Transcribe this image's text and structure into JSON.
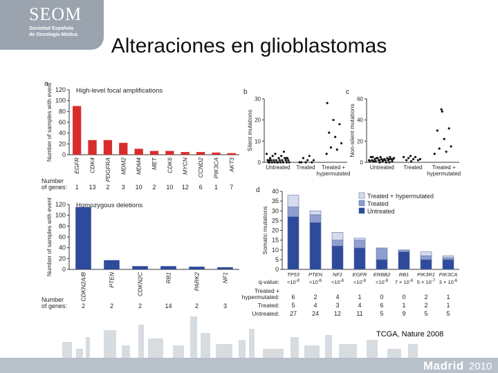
{
  "slide": {
    "title": "Alteraciones en glioblastomas",
    "logo": {
      "name": "SEOM",
      "line1": "Sociedad Española",
      "line2": "de Oncología Médica"
    },
    "caption": "TCGA, Nature 2008",
    "footer": {
      "brand": "Madrid",
      "year": "2010"
    },
    "colors": {
      "red": "#d92d2d",
      "blue": "#2e4a9a",
      "midblue": "#8e9fcf",
      "lightblue": "#d4dcee",
      "logo_bg": "#9aa3ae"
    }
  },
  "chart_data": [
    {
      "type": "bar",
      "panel": "a",
      "title": "High-level focal amplifications",
      "ylabel": "Number of samples with event",
      "ylim": [
        0,
        120
      ],
      "yticks": [
        0,
        20,
        40,
        60,
        80,
        100,
        120
      ],
      "categories": [
        "EGFR",
        "CDK4",
        "PDGFRA",
        "MDM2",
        "MDM4",
        "MET",
        "CDK6",
        "MYCN",
        "CCND2",
        "PIK3CA",
        "AKT3"
      ],
      "values": [
        90,
        27,
        27,
        22,
        11,
        7,
        7,
        5,
        5,
        4,
        3
      ],
      "genes_label": "Number\nof genes:",
      "genes": [
        "1",
        "13",
        "2",
        "3",
        "10",
        "2",
        "10",
        "12",
        "6",
        "1",
        "7"
      ],
      "color": "#d92d2d"
    },
    {
      "type": "bar",
      "panel": "a",
      "title": "Homozygous deletions",
      "ylabel": "Number of samples with event",
      "ylim": [
        0,
        120
      ],
      "yticks": [
        0,
        20,
        40,
        60,
        80,
        100,
        120
      ],
      "categories": [
        "CDKN2A/B",
        "PTEN",
        "CDKN2C",
        "RB1",
        "PARK2",
        "NF1"
      ],
      "values": [
        115,
        17,
        6,
        6,
        5,
        4
      ],
      "genes_label": "Number\nof genes:",
      "genes": [
        "2",
        "2",
        "2",
        "14",
        "2",
        "3"
      ],
      "color": "#2e4a9a"
    },
    {
      "type": "scatter",
      "panel": "b",
      "ylabel": "Silent mutations",
      "ylim": [
        0,
        30
      ],
      "yticks": [
        0,
        10,
        20,
        30
      ],
      "groups": [
        "Untreated",
        "Treated",
        "Treated +\nhypermutated"
      ],
      "points": [
        {
          "group": 0,
          "y": [
            0,
            0,
            0,
            0,
            0,
            0,
            0,
            0,
            0,
            0,
            1,
            1,
            1,
            1,
            1,
            1,
            1,
            1,
            2,
            2,
            2,
            2,
            3,
            3,
            4,
            4,
            5,
            1,
            0,
            2
          ]
        },
        {
          "group": 1,
          "y": [
            0,
            0,
            0,
            0,
            1,
            1,
            2,
            3
          ]
        },
        {
          "group": 2,
          "y": [
            28,
            20,
            18,
            14,
            12,
            9,
            7,
            6,
            4
          ]
        }
      ]
    },
    {
      "type": "scatter",
      "panel": "c",
      "ylabel": "Non-silent mutations",
      "ylim": [
        0,
        60
      ],
      "yticks": [
        0,
        20,
        40,
        60
      ],
      "groups": [
        "Untreated",
        "Treated",
        "Treated +\nhypermutated"
      ],
      "points": [
        {
          "group": 0,
          "y": [
            0,
            0,
            1,
            1,
            1,
            1,
            2,
            2,
            2,
            2,
            2,
            3,
            3,
            3,
            3,
            4,
            4,
            4,
            5,
            5,
            5,
            1,
            2,
            3,
            4,
            0,
            1,
            2,
            3,
            5
          ]
        },
        {
          "group": 1,
          "y": [
            1,
            2,
            2,
            3,
            3,
            4,
            5,
            5,
            6
          ]
        },
        {
          "group": 2,
          "y": [
            48,
            32,
            30,
            22,
            15,
            13,
            10,
            8,
            50
          ]
        }
      ]
    },
    {
      "type": "bar",
      "panel": "d",
      "stacked": true,
      "ylabel": "Somatic mutations",
      "ylim": [
        0,
        40
      ],
      "yticks": [
        0,
        5,
        10,
        15,
        20,
        25,
        30,
        35,
        40
      ],
      "categories": [
        "TP53",
        "PTEN",
        "NF1",
        "EGFR",
        "ERBB2",
        "RB1",
        "PIK3R1",
        "PIK3CA"
      ],
      "series": [
        {
          "name": "Untreated",
          "values": [
            27,
            24,
            12,
            11,
            5,
            9,
            5,
            5
          ]
        },
        {
          "name": "Treated",
          "values": [
            5,
            4,
            3,
            4,
            6,
            1,
            2,
            1
          ]
        },
        {
          "name": "Treated + hypermutated",
          "values": [
            6,
            2,
            4,
            1,
            0,
            0,
            2,
            1
          ]
        }
      ],
      "qvalue_label": "q-value:",
      "qvalues": [
        "<10^-8",
        "<10^-8",
        "<10^-8",
        "<10^-8",
        "<10^-8",
        "7 × 10^-8",
        "5 × 10^-7",
        "3 × 10^-6"
      ],
      "row_labels": [
        "Treated +\nhypermutated:",
        "Treated:",
        "Untreated:"
      ],
      "legend_position": "top-right"
    }
  ]
}
